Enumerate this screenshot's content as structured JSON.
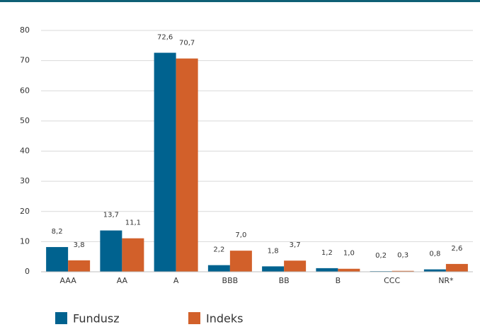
{
  "chart_data": {
    "type": "bar",
    "categories": [
      "AAA",
      "AA",
      "A",
      "BBB",
      "BB",
      "B",
      "CCC",
      "NR*"
    ],
    "series": [
      {
        "name": "Fundusz",
        "color": "#00628f",
        "values": [
          8.2,
          13.7,
          72.6,
          2.2,
          1.8,
          1.2,
          0.2,
          0.8
        ],
        "value_labels": [
          "8,2",
          "13,7",
          "72,6",
          "2,2",
          "1,8",
          "1,2",
          "0,2",
          "0,8"
        ]
      },
      {
        "name": "Indeks",
        "color": "#d2602a",
        "values": [
          3.8,
          11.1,
          70.7,
          7.0,
          3.7,
          1.0,
          0.3,
          2.6
        ],
        "value_labels": [
          "3,8",
          "11,1",
          "70,7",
          "7,0",
          "3,7",
          "1,0",
          "0,3",
          "2,6"
        ]
      }
    ],
    "ylim": [
      0,
      80
    ],
    "yticks": [
      0,
      10,
      20,
      30,
      40,
      50,
      60,
      70,
      80
    ],
    "grid": true,
    "legend": "bottom"
  }
}
